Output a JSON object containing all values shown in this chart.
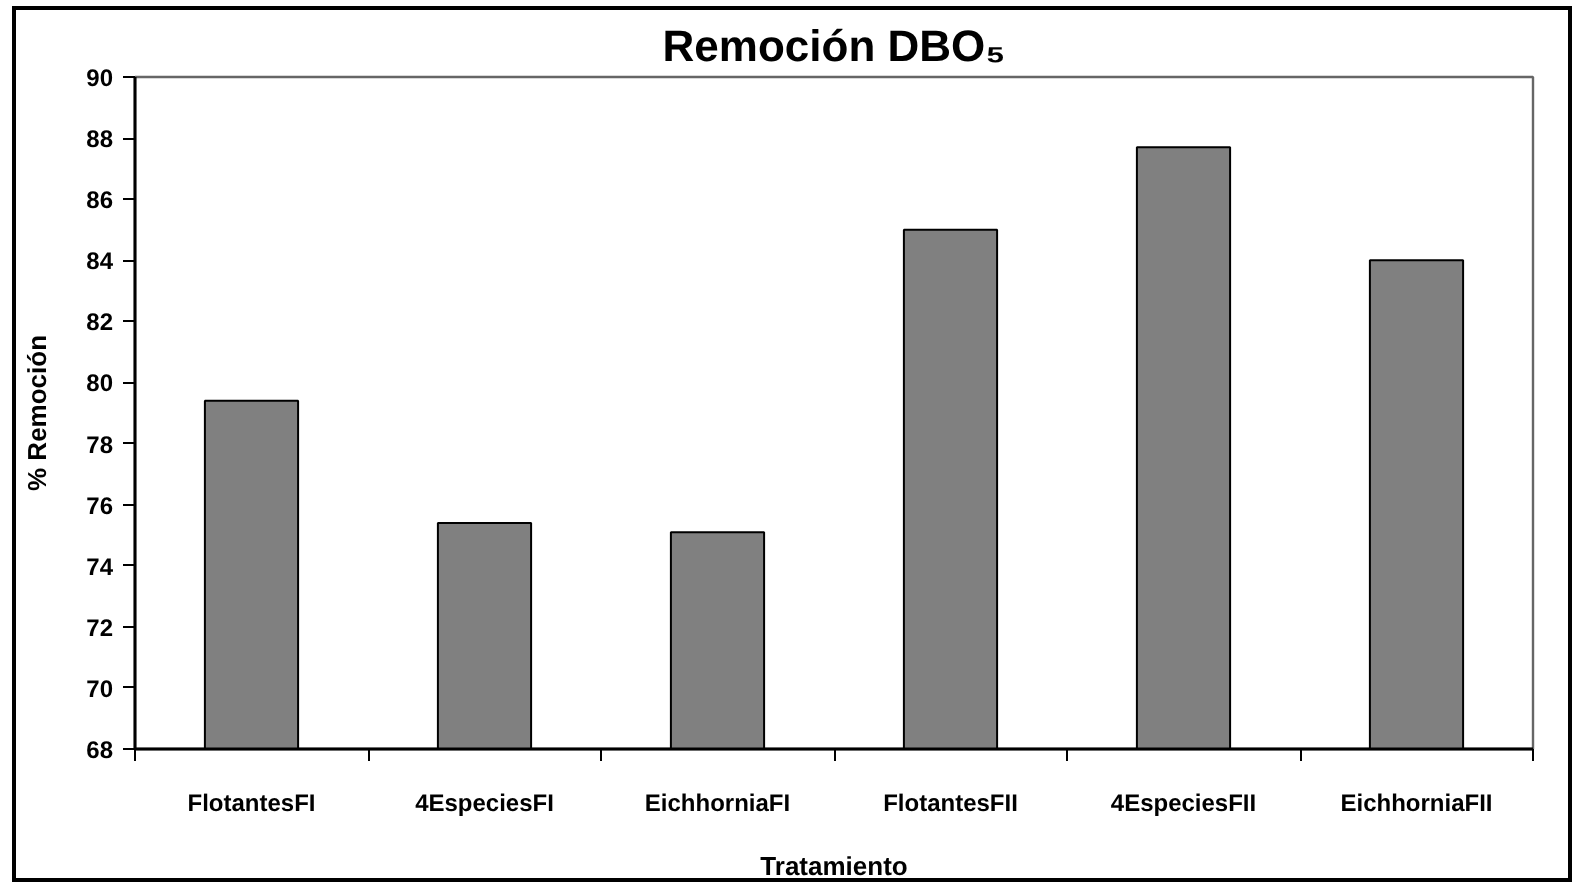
{
  "chart_data": {
    "type": "bar",
    "title": "Remoción DBO₅",
    "xlabel": "Tratamiento",
    "ylabel": "% Remoción",
    "categories": [
      "FlotantesFI",
      "4EspeciesFI",
      "EichhorniaFI",
      "FlotantesFII",
      "4EspeciesFII",
      "EichhorniaFII"
    ],
    "values": [
      79.4,
      75.4,
      75.1,
      85.0,
      87.7,
      84.0
    ],
    "color": "#808080",
    "ylim": [
      68,
      90
    ],
    "yticks": [
      68,
      70,
      72,
      74,
      76,
      78,
      80,
      82,
      84,
      86,
      88,
      90
    ],
    "grid": false
  }
}
